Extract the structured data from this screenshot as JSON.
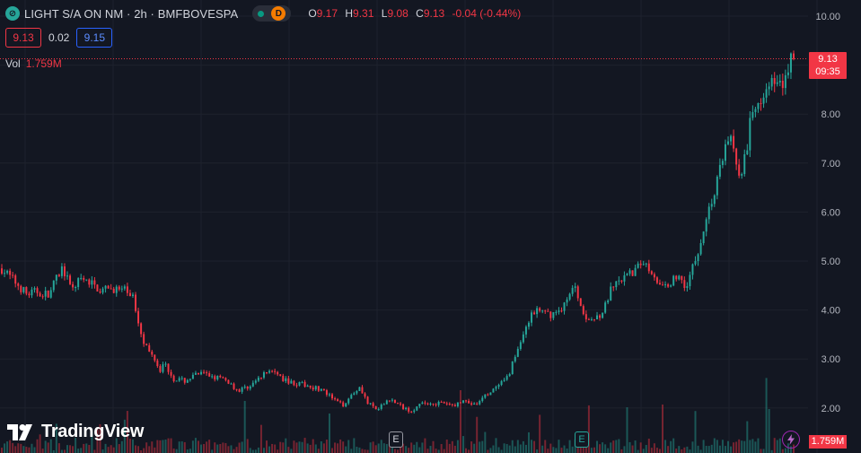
{
  "symbol": {
    "title": "LIGHT S/A ON NM · 2h · BMFBOVESPA",
    "icon": "symbol-logo-icon",
    "status_icon": "market-open-dot-icon",
    "delay_badge": "D"
  },
  "ohlc": {
    "o_label": "O",
    "o_value": "9.17",
    "h_label": "H",
    "h_value": "9.31",
    "l_label": "L",
    "l_value": "9.08",
    "c_label": "C",
    "c_value": "9.13",
    "change": "-0.04 (-0.44%)"
  },
  "bid_ask": {
    "bid": "9.13",
    "spread": "0.02",
    "ask": "9.15"
  },
  "volume_legend": {
    "label": "Vol",
    "value": "1.759M"
  },
  "price_tag": {
    "price": "9.13",
    "countdown": "09:35"
  },
  "volume_tag": "1.759M",
  "events": [
    {
      "label": "E",
      "color": "#d1d4dc"
    },
    {
      "label": "E",
      "color": "#26a69a"
    }
  ],
  "logo": "TradingView",
  "colors": {
    "up": "#26a69a",
    "down": "#f23645",
    "background": "#131722",
    "grid": "#1e222d"
  },
  "chart_data": {
    "type": "candlestick",
    "timeframe": "2h",
    "y_axis": {
      "ticks": [
        "2.00",
        "3.00",
        "4.00",
        "5.00",
        "6.00",
        "7.00",
        "8.00",
        "9.00",
        "10.00"
      ],
      "range": [
        1.2,
        10.2
      ]
    },
    "last_price": 9.13,
    "close_path": [
      [
        0,
        4.85
      ],
      [
        8,
        4.55
      ],
      [
        14,
        4.32
      ],
      [
        20,
        4.38
      ],
      [
        26,
        4.3
      ],
      [
        30,
        4.6
      ],
      [
        34,
        4.88
      ],
      [
        38,
        4.45
      ],
      [
        44,
        4.6
      ],
      [
        50,
        4.55
      ],
      [
        56,
        4.38
      ],
      [
        62,
        4.45
      ],
      [
        66,
        4.4
      ],
      [
        70,
        4.38
      ],
      [
        73,
        4.3
      ],
      [
        76,
        3.8
      ],
      [
        79,
        3.4
      ],
      [
        82,
        3.15
      ],
      [
        86,
        3.0
      ],
      [
        88,
        2.75
      ],
      [
        90,
        2.95
      ],
      [
        96,
        2.6
      ],
      [
        102,
        2.55
      ],
      [
        110,
        2.7
      ],
      [
        118,
        2.65
      ],
      [
        126,
        2.55
      ],
      [
        132,
        2.35
      ],
      [
        138,
        2.45
      ],
      [
        144,
        2.6
      ],
      [
        150,
        2.8
      ],
      [
        156,
        2.6
      ],
      [
        164,
        2.5
      ],
      [
        172,
        2.45
      ],
      [
        178,
        2.38
      ],
      [
        184,
        2.2
      ],
      [
        190,
        2.05
      ],
      [
        196,
        2.3
      ],
      [
        200,
        2.45
      ],
      [
        204,
        2.1
      ],
      [
        210,
        1.95
      ],
      [
        216,
        2.2
      ],
      [
        222,
        2.05
      ],
      [
        228,
        1.95
      ],
      [
        236,
        2.1
      ],
      [
        244,
        2.1
      ],
      [
        252,
        2.05
      ],
      [
        258,
        2.15
      ],
      [
        264,
        2.05
      ],
      [
        270,
        2.25
      ],
      [
        276,
        2.4
      ],
      [
        282,
        2.6
      ],
      [
        286,
        3.0
      ],
      [
        290,
        3.4
      ],
      [
        294,
        3.8
      ],
      [
        298,
        4.0
      ],
      [
        304,
        3.9
      ],
      [
        310,
        3.95
      ],
      [
        316,
        4.2
      ],
      [
        320,
        4.55
      ],
      [
        324,
        3.95
      ],
      [
        330,
        3.8
      ],
      [
        336,
        4.0
      ],
      [
        340,
        4.4
      ],
      [
        346,
        4.6
      ],
      [
        352,
        4.75
      ],
      [
        358,
        5.0
      ],
      [
        364,
        4.75
      ],
      [
        368,
        4.4
      ],
      [
        372,
        4.55
      ],
      [
        378,
        4.7
      ],
      [
        382,
        4.5
      ],
      [
        386,
        4.9
      ],
      [
        390,
        5.4
      ],
      [
        394,
        6.0
      ],
      [
        398,
        6.4
      ],
      [
        402,
        7.1
      ],
      [
        406,
        7.6
      ],
      [
        410,
        7.0
      ],
      [
        412,
        6.8
      ],
      [
        416,
        7.2
      ],
      [
        418,
        7.9
      ],
      [
        422,
        8.2
      ],
      [
        426,
        8.6
      ],
      [
        430,
        8.7
      ],
      [
        434,
        8.55
      ],
      [
        438,
        8.8
      ],
      [
        440,
        9.2
      ],
      [
        442,
        9.13
      ]
    ]
  }
}
